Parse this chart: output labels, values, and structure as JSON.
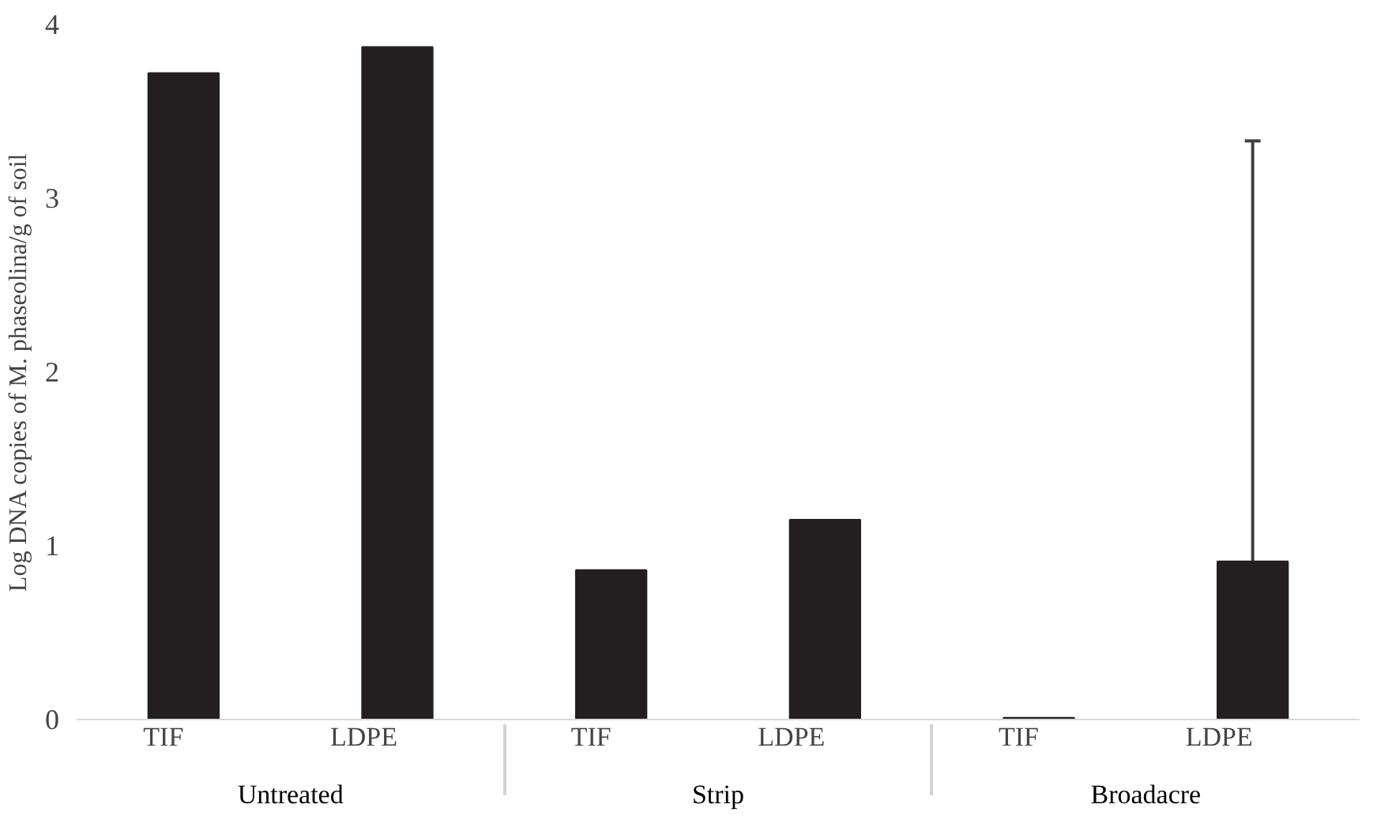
{
  "chart_data": {
    "type": "bar",
    "ylabel": "Log DNA copies of M. phaseolina/g of soil",
    "categories": [
      "TIF",
      "LDPE",
      "TIF",
      "LDPE",
      "TIF",
      "LDPE"
    ],
    "annotations": [
      "Untreated",
      "Strip",
      "Broadacre"
    ],
    "values": [
      3.72,
      3.87,
      0.86,
      1.15,
      0.01,
      0.91
    ],
    "errors": [
      null,
      null,
      null,
      null,
      null,
      2.42
    ],
    "color": "#231f20",
    "ylim": [
      0,
      4
    ],
    "yticks": [
      0,
      1,
      2,
      3,
      4
    ],
    "grid": false
  }
}
